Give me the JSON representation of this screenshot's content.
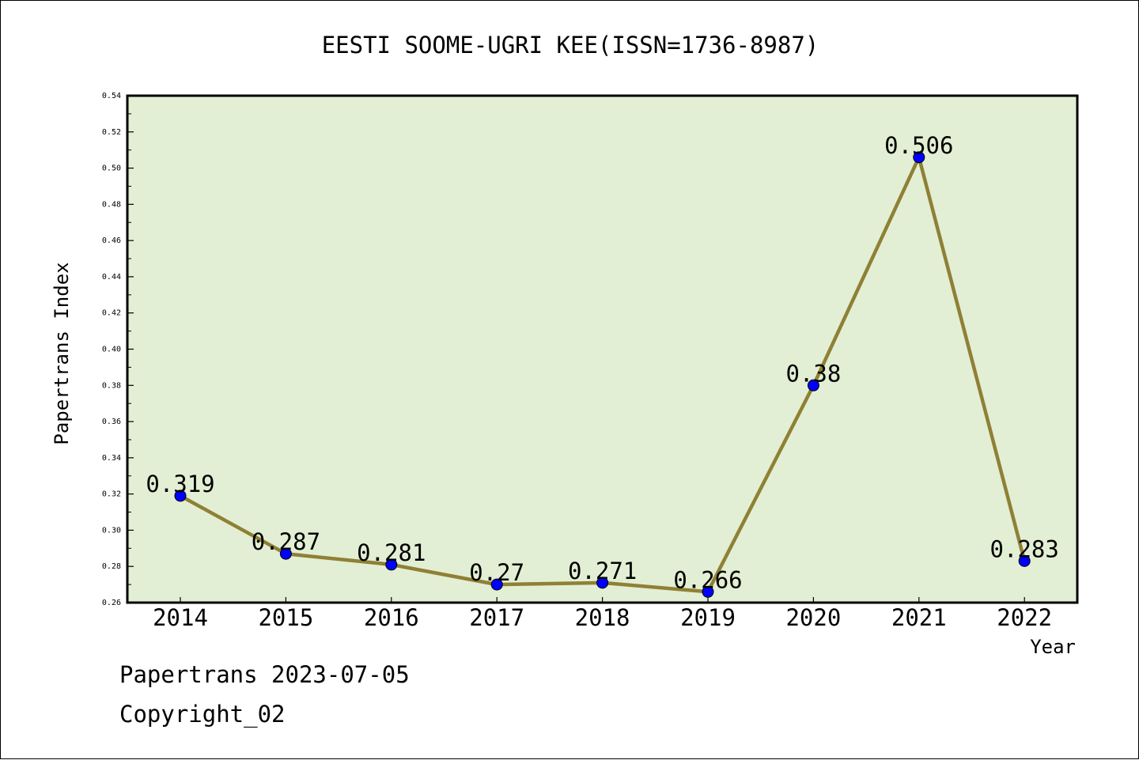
{
  "chart_data": {
    "type": "line",
    "title": "EESTI SOOME-UGRI KEE(ISSN=1736-8987)",
    "xlabel": "Year",
    "ylabel": "Papertrans Index",
    "categories": [
      "2014",
      "2015",
      "2016",
      "2017",
      "2018",
      "2019",
      "2020",
      "2021",
      "2022"
    ],
    "values": [
      0.319,
      0.287,
      0.281,
      0.27,
      0.271,
      0.266,
      0.38,
      0.506,
      0.283
    ],
    "data_labels": [
      "0.319",
      "0.287",
      "0.281",
      "0.27",
      "0.271",
      "0.266",
      "0.38",
      "0.506",
      "0.283"
    ],
    "ylim": [
      0.26,
      0.54
    ],
    "yticks": [
      "0.26",
      "0.28",
      "0.30",
      "0.32",
      "0.34",
      "0.36",
      "0.38",
      "0.40",
      "0.42",
      "0.44",
      "0.46",
      "0.48",
      "0.50",
      "0.52",
      "0.54"
    ],
    "grid": false,
    "colors": {
      "plot_background": "#e2efd4",
      "line": "#8f8035",
      "marker": "#0000ff"
    }
  },
  "footer": {
    "line1": "Papertrans 2023-07-05",
    "line2": "Copyright_02"
  }
}
